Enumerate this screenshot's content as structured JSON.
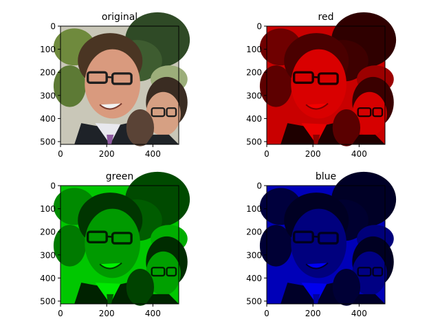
{
  "figure": {
    "background": "#ffffff",
    "tick_values": [
      0,
      100,
      200,
      300,
      400,
      500
    ],
    "x_tick_values": [
      0,
      200,
      400
    ],
    "panels": [
      {
        "id": "original",
        "title": "original",
        "channel": "rgb"
      },
      {
        "id": "red",
        "title": "red",
        "channel": "r",
        "color": "#ff0000"
      },
      {
        "id": "green",
        "title": "green",
        "channel": "g",
        "color": "#00ff00"
      },
      {
        "id": "blue",
        "title": "blue",
        "channel": "b",
        "color": "#0000ff"
      }
    ]
  },
  "chart_data": [
    {
      "type": "image",
      "title": "original",
      "xlim": [
        0,
        512
      ],
      "ylim": [
        512,
        0
      ],
      "xticks": [
        0,
        200,
        400
      ],
      "yticks": [
        0,
        100,
        200,
        300,
        400,
        500
      ]
    },
    {
      "type": "image",
      "title": "red",
      "xlim": [
        0,
        512
      ],
      "ylim": [
        512,
        0
      ],
      "xticks": [
        0,
        200,
        400
      ],
      "yticks": [
        0,
        100,
        200,
        300,
        400,
        500
      ]
    },
    {
      "type": "image",
      "title": "green",
      "xlim": [
        0,
        512
      ],
      "ylim": [
        512,
        0
      ],
      "xticks": [
        0,
        200,
        400
      ],
      "yticks": [
        0,
        100,
        200,
        300,
        400,
        500
      ]
    },
    {
      "type": "image",
      "title": "blue",
      "xlim": [
        0,
        512
      ],
      "ylim": [
        512,
        0
      ],
      "xticks": [
        0,
        200,
        400
      ],
      "yticks": [
        0,
        100,
        200,
        300,
        400,
        500
      ]
    }
  ]
}
